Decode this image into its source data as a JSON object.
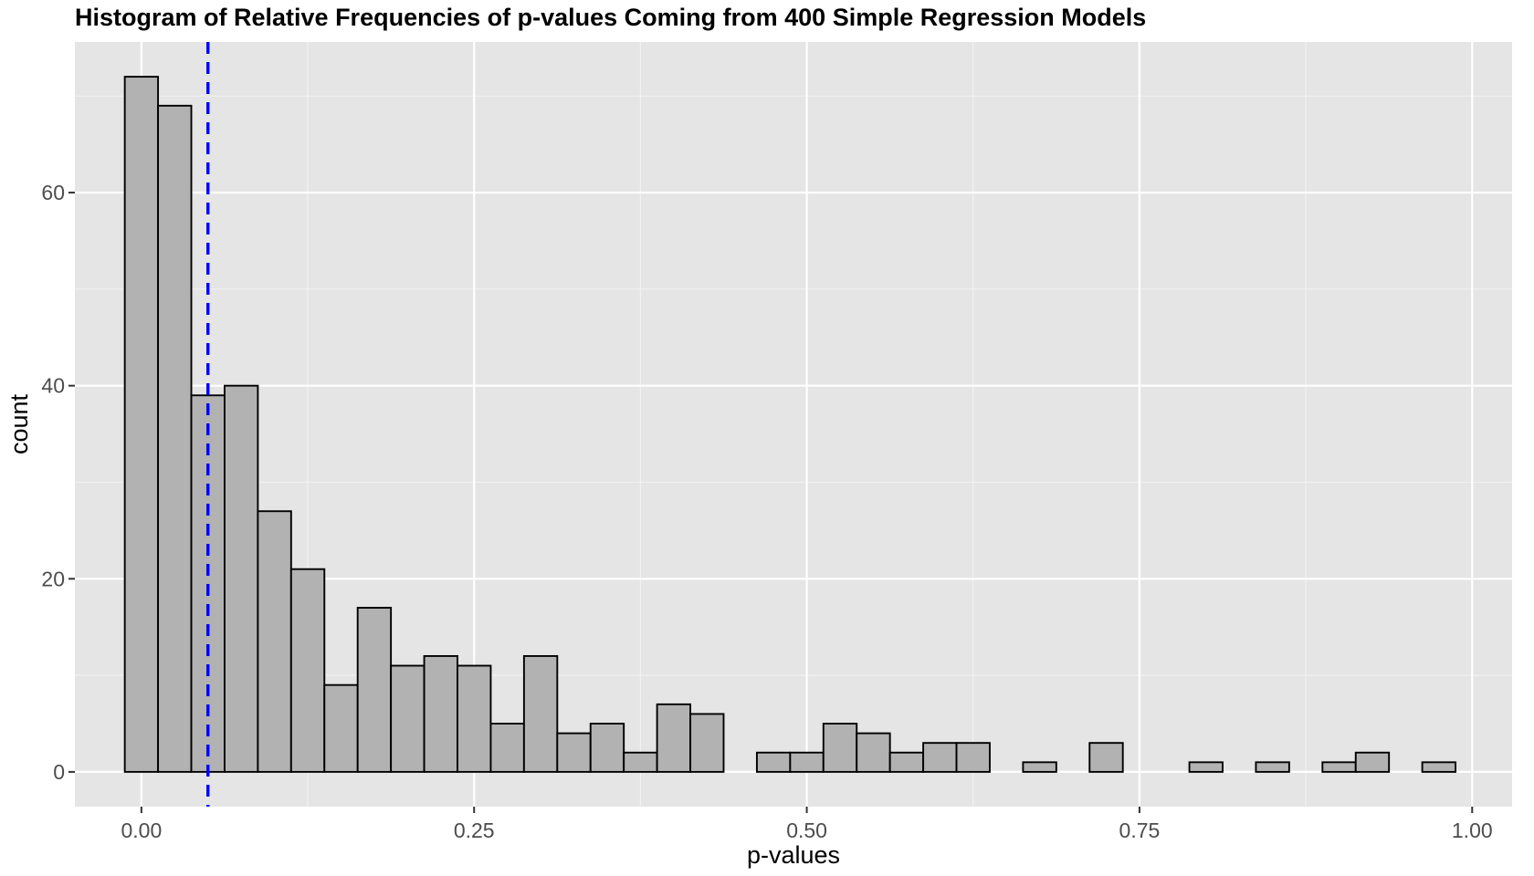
{
  "chart_data": {
    "type": "bar",
    "title": "Histogram of Relative Frequencies of p-values Coming from 400 Simple Regression Models",
    "xlabel": "p-values",
    "ylabel": "count",
    "xlim": [
      -0.05,
      1.03
    ],
    "ylim": [
      -3.6,
      75.6
    ],
    "x_ticks": [
      0.0,
      0.25,
      0.5,
      0.75,
      1.0
    ],
    "x_tick_labels": [
      "0.00",
      "0.25",
      "0.50",
      "0.75",
      "1.00"
    ],
    "y_ticks": [
      0,
      20,
      40,
      60
    ],
    "y_tick_labels": [
      "0",
      "20",
      "40",
      "60"
    ],
    "bin_width": 0.025,
    "bin_start": -0.0125,
    "counts": [
      72,
      69,
      39,
      40,
      27,
      21,
      9,
      17,
      11,
      12,
      11,
      5,
      12,
      4,
      5,
      2,
      7,
      6,
      0,
      2,
      2,
      5,
      4,
      2,
      3,
      3,
      0,
      1,
      0,
      3,
      0,
      0,
      1,
      0,
      1,
      0,
      1,
      2,
      0,
      1
    ],
    "reference_line": {
      "x": 0.05,
      "color": "#0000ff",
      "style": "dashed"
    },
    "bar_fill": "#b2b2b2",
    "bar_stroke": "#000000",
    "panel_background": "#e5e5e5",
    "grid": true,
    "legend": "none"
  }
}
